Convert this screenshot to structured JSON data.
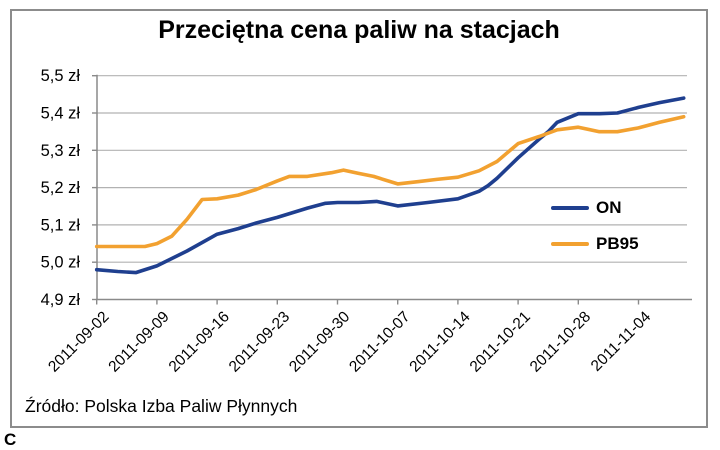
{
  "title": "Przeciętna cena paliw na stacjach",
  "source": "Źródło: Polska Izba Paliw Płynnych",
  "stray_glyph": "C",
  "colors": {
    "on_line": "#1f3f8f",
    "pb95_line": "#f2a130",
    "gridline": "#b2b2b2",
    "axis": "#8a8a8a",
    "border": "#8c8c8c",
    "text": "#000000",
    "background": "#ffffff"
  },
  "chart_data": {
    "type": "line",
    "title": "Przeciętna cena paliw na stacjach",
    "xlabel": "",
    "ylabel": "",
    "ylim": [
      4.9,
      5.5
    ],
    "grid": true,
    "legend_position": "right-middle",
    "currency_suffix": " zł",
    "x_tick_labels": [
      "2011-09-02",
      "2011-09-09",
      "2011-09-16",
      "2011-09-23",
      "2011-09-30",
      "2011-10-07",
      "2011-10-14",
      "2011-10-21",
      "2011-10-28",
      "2011-11-04"
    ],
    "y_tick_values": [
      4.9,
      5.0,
      5.1,
      5.2,
      5.3,
      5.4,
      5.5
    ],
    "y_tick_labels": [
      "4,9 zł",
      "5,0 zł",
      "5,1 zł",
      "5,2 zł",
      "5,3 zł",
      "5,4 zł",
      "5,5 zł"
    ],
    "series": [
      {
        "name": "ON",
        "color": "#1f3f8f",
        "points": [
          [
            0,
            4.98
          ],
          [
            0.35,
            4.975
          ],
          [
            0.65,
            4.972
          ],
          [
            1,
            4.99
          ],
          [
            1.5,
            5.03
          ],
          [
            2,
            5.075
          ],
          [
            2.35,
            5.09
          ],
          [
            2.65,
            5.105
          ],
          [
            3,
            5.12
          ],
          [
            3.5,
            5.145
          ],
          [
            3.8,
            5.158
          ],
          [
            4,
            5.16
          ],
          [
            4.35,
            5.16
          ],
          [
            4.65,
            5.163
          ],
          [
            5,
            5.151
          ],
          [
            5.5,
            5.16
          ],
          [
            6,
            5.17
          ],
          [
            6.35,
            5.19
          ],
          [
            6.5,
            5.205
          ],
          [
            6.65,
            5.225
          ],
          [
            7,
            5.28
          ],
          [
            7.35,
            5.33
          ],
          [
            7.5,
            5.35
          ],
          [
            7.65,
            5.375
          ],
          [
            8,
            5.398
          ],
          [
            8.35,
            5.398
          ],
          [
            8.65,
            5.4
          ],
          [
            9,
            5.415
          ],
          [
            9.35,
            5.428
          ],
          [
            9.75,
            5.44
          ]
        ]
      },
      {
        "name": "PB95",
        "color": "#f2a130",
        "points": [
          [
            0,
            5.042
          ],
          [
            0.5,
            5.042
          ],
          [
            0.8,
            5.042
          ],
          [
            1,
            5.05
          ],
          [
            1.25,
            5.07
          ],
          [
            1.5,
            5.115
          ],
          [
            1.75,
            5.168
          ],
          [
            2,
            5.17
          ],
          [
            2.35,
            5.18
          ],
          [
            2.65,
            5.195
          ],
          [
            3,
            5.218
          ],
          [
            3.2,
            5.23
          ],
          [
            3.5,
            5.23
          ],
          [
            3.9,
            5.24
          ],
          [
            4.1,
            5.247
          ],
          [
            4.35,
            5.238
          ],
          [
            4.6,
            5.23
          ],
          [
            5,
            5.21
          ],
          [
            5.35,
            5.216
          ],
          [
            5.65,
            5.222
          ],
          [
            6,
            5.228
          ],
          [
            6.35,
            5.245
          ],
          [
            6.65,
            5.27
          ],
          [
            7,
            5.318
          ],
          [
            7.35,
            5.337
          ],
          [
            7.65,
            5.355
          ],
          [
            8,
            5.362
          ],
          [
            8.35,
            5.35
          ],
          [
            8.65,
            5.35
          ],
          [
            9,
            5.36
          ],
          [
            9.35,
            5.375
          ],
          [
            9.75,
            5.39
          ]
        ]
      }
    ]
  }
}
